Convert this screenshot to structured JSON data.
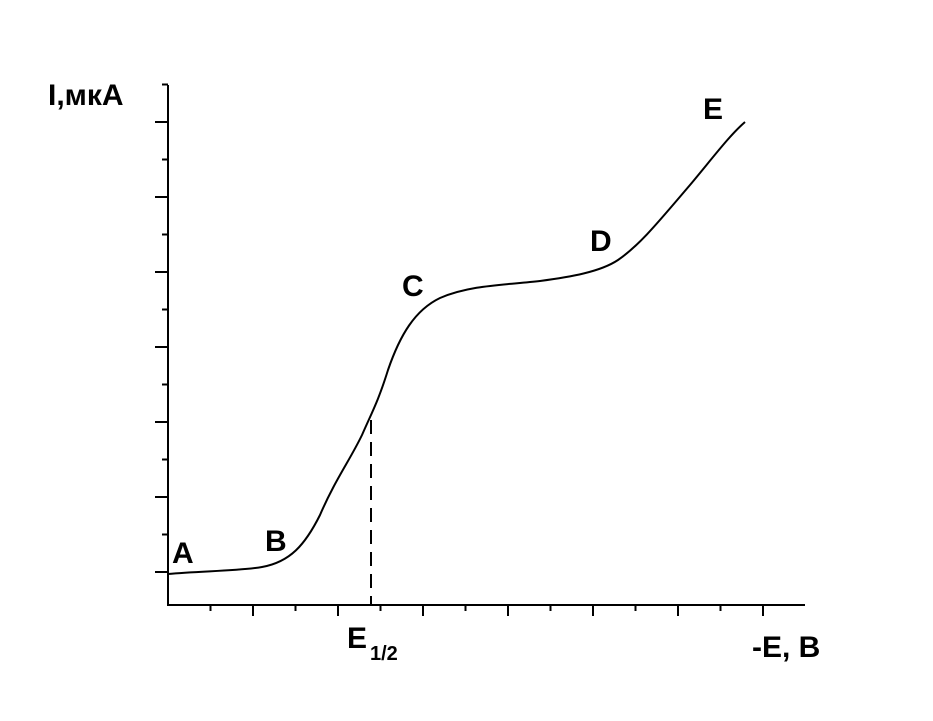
{
  "axes": {
    "y_label": "I,мкА",
    "x_label": "-E, B"
  },
  "half_wave": {
    "label": "E",
    "subscript": "1/2"
  },
  "points": [
    "A",
    "B",
    "C",
    "D",
    "E"
  ]
}
